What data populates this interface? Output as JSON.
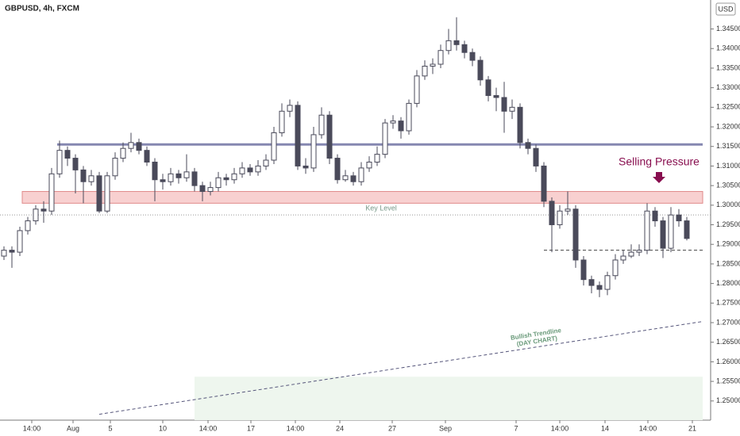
{
  "chart_data": {
    "type": "candlestick",
    "title": "GBPUSD, 4h, FXCM",
    "currency": "USD",
    "up_color": "#ffffff",
    "down_color": "#4a4a5a",
    "outline_color": "#4a4a5a",
    "xlim": [
      -0.5,
      89
    ],
    "ylim": [
      1.2451,
      1.3524
    ],
    "xticks": [
      {
        "value": 3.5,
        "label": "14:00"
      },
      {
        "value": 8.7,
        "label": "Aug"
      },
      {
        "value": 13.4,
        "label": "5"
      },
      {
        "value": 20,
        "label": "10"
      },
      {
        "value": 25.7,
        "label": "14:00"
      },
      {
        "value": 31.1,
        "label": "17"
      },
      {
        "value": 36.7,
        "label": "14:00"
      },
      {
        "value": 42.3,
        "label": "24"
      },
      {
        "value": 48.9,
        "label": "27"
      },
      {
        "value": 55.6,
        "label": "Sep"
      },
      {
        "value": 64.5,
        "label": "7"
      },
      {
        "value": 70,
        "label": "14:00"
      },
      {
        "value": 75.7,
        "label": "14"
      },
      {
        "value": 81.1,
        "label": "14:00"
      },
      {
        "value": 86.7,
        "label": "21"
      }
    ],
    "yticks": [
      {
        "value": 1.25,
        "label": "1.25000"
      },
      {
        "value": 1.255,
        "label": "1.25500"
      },
      {
        "value": 1.26,
        "label": "1.26000"
      },
      {
        "value": 1.265,
        "label": "1.26500"
      },
      {
        "value": 1.27,
        "label": "1.27000"
      },
      {
        "value": 1.275,
        "label": "1.27500"
      },
      {
        "value": 1.28,
        "label": "1.28000"
      },
      {
        "value": 1.285,
        "label": "1.28500"
      },
      {
        "value": 1.29,
        "label": "1.29000"
      },
      {
        "value": 1.295,
        "label": "1.29500"
      },
      {
        "value": 1.3,
        "label": "1.30000"
      },
      {
        "value": 1.305,
        "label": "1.30500"
      },
      {
        "value": 1.31,
        "label": "1.31000"
      },
      {
        "value": 1.315,
        "label": "1.31500"
      },
      {
        "value": 1.32,
        "label": "1.32000"
      },
      {
        "value": 1.325,
        "label": "1.32500"
      },
      {
        "value": 1.33,
        "label": "1.33000"
      },
      {
        "value": 1.335,
        "label": "1.33500"
      },
      {
        "value": 1.34,
        "label": "1.34000"
      },
      {
        "value": 1.345,
        "label": "1.34500"
      }
    ],
    "open": [
      1.287,
      1.2885,
      1.288,
      1.2935,
      1.296,
      1.299,
      1.2985,
      1.308,
      1.314,
      1.312,
      1.309,
      1.306,
      1.3075,
      1.2985,
      1.3075,
      1.312,
      1.3145,
      1.316,
      1.314,
      1.311,
      1.3065,
      1.306,
      1.308,
      1.307,
      1.3085,
      1.305,
      1.3035,
      1.3045,
      1.307,
      1.3065,
      1.308,
      1.3095,
      1.3085,
      1.31,
      1.3115,
      1.3185,
      1.324,
      1.3255,
      1.31,
      1.3095,
      1.318,
      1.323,
      1.312,
      1.3065,
      1.3075,
      1.306,
      1.3095,
      1.311,
      1.313,
      1.321,
      1.3215,
      1.319,
      1.326,
      1.333,
      1.3355,
      1.336,
      1.3395,
      1.342,
      1.341,
      1.339,
      1.337,
      1.332,
      1.328,
      1.3275,
      1.324,
      1.325,
      1.316,
      1.3145,
      1.31,
      1.301,
      1.295,
      1.2985,
      1.299,
      1.286,
      1.281,
      1.2795,
      1.2785,
      1.282,
      1.286,
      1.287,
      1.288,
      1.2885,
      1.2985,
      1.296,
      1.289,
      1.2975,
      1.296
    ],
    "high": [
      1.2895,
      1.2895,
      1.2945,
      1.297,
      1.3,
      1.301,
      1.3095,
      1.3165,
      1.315,
      1.313,
      1.31,
      1.309,
      1.3085,
      1.3085,
      1.3135,
      1.316,
      1.3185,
      1.317,
      1.315,
      1.312,
      1.308,
      1.3095,
      1.309,
      1.313,
      1.3095,
      1.306,
      1.306,
      1.3085,
      1.308,
      1.3095,
      1.311,
      1.3105,
      1.3115,
      1.313,
      1.32,
      1.326,
      1.327,
      1.3265,
      1.312,
      1.32,
      1.325,
      1.324,
      1.313,
      1.309,
      1.3085,
      1.311,
      1.3125,
      1.315,
      1.322,
      1.323,
      1.3225,
      1.327,
      1.3345,
      1.337,
      1.3375,
      1.341,
      1.345,
      1.348,
      1.342,
      1.34,
      1.338,
      1.333,
      1.33,
      1.3315,
      1.327,
      1.326,
      1.317,
      1.3155,
      1.311,
      1.302,
      1.3,
      1.3035,
      1.3,
      1.287,
      1.282,
      1.2805,
      1.283,
      1.2875,
      1.2885,
      1.29,
      1.29,
      1.3005,
      1.2995,
      1.297,
      1.2995,
      1.299,
      1.297
    ],
    "low": [
      1.286,
      1.284,
      1.287,
      1.2925,
      1.295,
      1.2955,
      1.2975,
      1.307,
      1.31,
      1.303,
      1.3005,
      1.305,
      1.298,
      1.298,
      1.3065,
      1.311,
      1.3135,
      1.313,
      1.31,
      1.301,
      1.304,
      1.305,
      1.3055,
      1.306,
      1.3035,
      1.301,
      1.3025,
      1.3035,
      1.305,
      1.3055,
      1.307,
      1.3075,
      1.3075,
      1.309,
      1.3105,
      1.3175,
      1.3225,
      1.309,
      1.308,
      1.3085,
      1.317,
      1.3105,
      1.3055,
      1.306,
      1.305,
      1.305,
      1.3085,
      1.31,
      1.312,
      1.3195,
      1.317,
      1.318,
      1.325,
      1.332,
      1.3335,
      1.335,
      1.3385,
      1.3395,
      1.3375,
      1.3355,
      1.3305,
      1.3265,
      1.324,
      1.3185,
      1.322,
      1.3145,
      1.313,
      1.3085,
      1.2995,
      1.288,
      1.294,
      1.2975,
      1.284,
      1.2795,
      1.2775,
      1.2765,
      1.277,
      1.281,
      1.285,
      1.2865,
      1.287,
      1.2875,
      1.2945,
      1.2865,
      1.288,
      1.2945,
      1.291
    ],
    "close": [
      1.2885,
      1.288,
      1.2935,
      1.296,
      1.299,
      1.2985,
      1.308,
      1.314,
      1.312,
      1.309,
      1.306,
      1.3075,
      1.2985,
      1.3075,
      1.312,
      1.3145,
      1.316,
      1.314,
      1.311,
      1.3065,
      1.306,
      1.308,
      1.307,
      1.3085,
      1.305,
      1.3035,
      1.3045,
      1.307,
      1.3065,
      1.308,
      1.3095,
      1.3085,
      1.31,
      1.3115,
      1.3185,
      1.324,
      1.3255,
      1.31,
      1.3095,
      1.318,
      1.323,
      1.312,
      1.3065,
      1.3075,
      1.306,
      1.3095,
      1.311,
      1.313,
      1.321,
      1.3215,
      1.319,
      1.326,
      1.333,
      1.3355,
      1.336,
      1.3395,
      1.342,
      1.341,
      1.339,
      1.337,
      1.332,
      1.328,
      1.3275,
      1.324,
      1.325,
      1.316,
      1.3145,
      1.31,
      1.301,
      1.295,
      1.2985,
      1.299,
      1.286,
      1.281,
      1.2795,
      1.2785,
      1.282,
      1.286,
      1.287,
      1.288,
      1.2885,
      1.2985,
      1.296,
      1.289,
      1.2975,
      1.296,
      1.2915
    ],
    "resistance": {
      "price": 1.3155,
      "x": [
        6.7,
        88
      ],
      "color": "#8587b0"
    },
    "key_zone": {
      "price": [
        1.3005,
        1.3035
      ],
      "x": [
        2.3,
        88
      ],
      "color": "#f8d0d0",
      "border": "#e08a8a"
    },
    "key_level": {
      "label": "Key Level",
      "price": 1.2975
    },
    "support": {
      "price": 1.2885,
      "x": [
        68,
        88
      ]
    },
    "trendline": {
      "label": [
        "Bullish Trendline",
        "(DAY CHART)"
      ],
      "x": [
        12,
        88
      ],
      "y": [
        1.2466,
        1.2703
      ],
      "color": "#55557a"
    },
    "demand_area": {
      "x": [
        24,
        88
      ],
      "price_top": 1.2562,
      "color": "#eef6ee"
    },
    "annotation": {
      "text": "Selling Pressure",
      "color": "#880e4f"
    }
  }
}
